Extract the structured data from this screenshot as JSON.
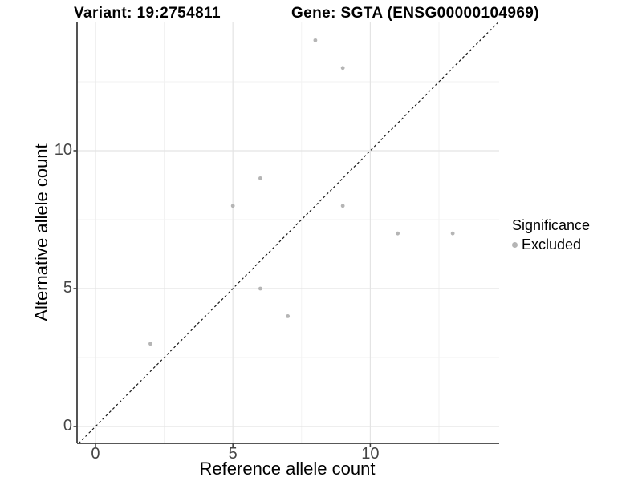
{
  "figure": {
    "title_variant": "Variant: 19:2754811",
    "title_gene": "Gene: SGTA (ENSG00000104969)"
  },
  "chart_data": {
    "type": "scatter",
    "title_left": "Variant: 19:2754811",
    "title_right": "Gene: SGTA (ENSG00000104969)",
    "xlabel": "Reference allele count",
    "ylabel": "Alternative allele count",
    "xlim": [
      -0.67,
      14.69
    ],
    "ylim": [
      -0.61,
      14.65
    ],
    "x_major_ticks": [
      0,
      5,
      10
    ],
    "y_major_ticks": [
      0,
      5,
      10
    ],
    "x_minor_gridlines": [
      2.5,
      7.5,
      12.5
    ],
    "y_minor_gridlines": [
      2.5,
      7.5,
      12.5
    ],
    "grid": true,
    "identity_line": {
      "equation": "y = x",
      "style": "dashed",
      "color": "#1a1a1a"
    },
    "series": [
      {
        "name": "Excluded",
        "color": "#b5b5b5",
        "points": [
          {
            "x": 2,
            "y": 3
          },
          {
            "x": 5,
            "y": 8
          },
          {
            "x": 6,
            "y": 5
          },
          {
            "x": 6,
            "y": 9
          },
          {
            "x": 7,
            "y": 4
          },
          {
            "x": 8,
            "y": 14
          },
          {
            "x": 9,
            "y": 8
          },
          {
            "x": 9,
            "y": 13
          },
          {
            "x": 11,
            "y": 7
          },
          {
            "x": 13,
            "y": 7
          }
        ]
      }
    ],
    "legend": {
      "title": "Significance",
      "position": "right",
      "items": [
        {
          "label": "Excluded",
          "color": "#b5b5b5"
        }
      ]
    },
    "colors": {
      "point": "#b5b5b5",
      "tick_label": "#454545",
      "grid_major": "#e4e4e4",
      "grid_minor": "#f2f2f2",
      "axis_line": "#404040"
    }
  }
}
